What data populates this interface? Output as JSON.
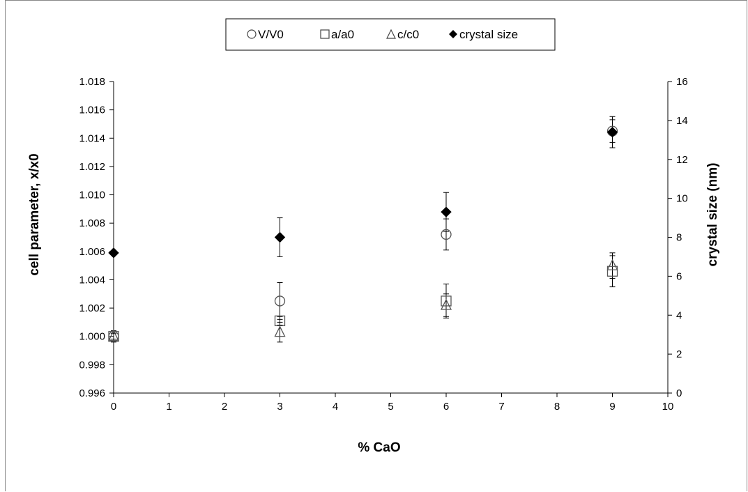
{
  "chart_data": {
    "type": "scatter",
    "title": "",
    "xlabel": "% CaO",
    "ylabel": "cell parameter, x/x0",
    "y2label": "crystal size (nm)",
    "xlim": [
      0,
      10
    ],
    "ylim": [
      0.996,
      1.018
    ],
    "y2lim": [
      0,
      16
    ],
    "x_ticks": [
      "0",
      "1",
      "2",
      "3",
      "4",
      "5",
      "6",
      "7",
      "8",
      "9",
      "10"
    ],
    "y_ticks": [
      "0.996",
      "0.998",
      "1.000",
      "1.002",
      "1.004",
      "1.006",
      "1.008",
      "1.010",
      "1.012",
      "1.014",
      "1.016",
      "1.018"
    ],
    "y2_ticks": [
      "0",
      "2",
      "4",
      "6",
      "8",
      "10",
      "12",
      "14",
      "16"
    ],
    "grid": false,
    "legend_placement": "top-center",
    "series": [
      {
        "name": "V/V0",
        "marker": "circle",
        "axis": "left",
        "x": [
          0,
          3,
          6,
          9
        ],
        "y": [
          1.0,
          1.0025,
          1.0072,
          1.0145
        ],
        "err": [
          0.0004,
          0.0013,
          0.0011,
          0.0008
        ]
      },
      {
        "name": "a/a0",
        "marker": "square",
        "axis": "left",
        "x": [
          0,
          3,
          6,
          9
        ],
        "y": [
          1.0,
          1.0011,
          1.0025,
          1.0046
        ],
        "err": [
          0.0003,
          0.0003,
          0.0012,
          0.0011
        ]
      },
      {
        "name": "c/c0",
        "marker": "triangle",
        "axis": "left",
        "x": [
          0,
          3,
          6,
          9
        ],
        "y": [
          1.0,
          1.0003,
          1.0022,
          1.005
        ],
        "err": [
          0.0002,
          0.0007,
          0.0008,
          0.0009
        ]
      },
      {
        "name": "crystal size",
        "marker": "diamond",
        "axis": "right",
        "x": [
          0,
          3,
          6,
          9
        ],
        "y": [
          7.2,
          8.0,
          9.3,
          13.4
        ],
        "err": [
          0,
          1.0,
          1.0,
          0.8
        ]
      }
    ]
  }
}
